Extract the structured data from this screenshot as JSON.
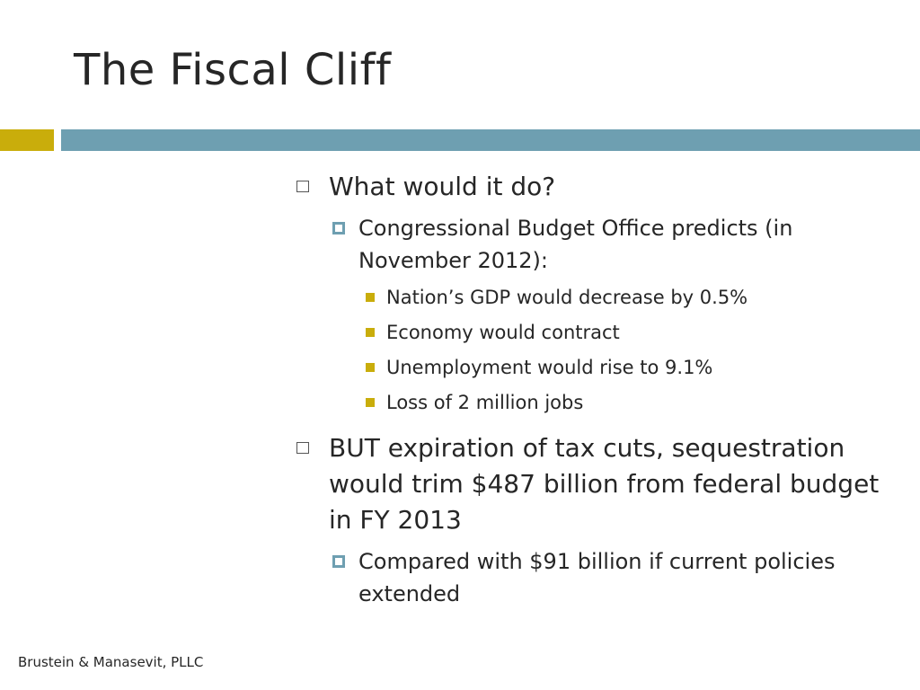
{
  "slide": {
    "title": "The Fiscal Cliff",
    "footer": "Brustein & Manasevit, PLLC",
    "bullets": [
      {
        "text": "What would it do?",
        "sub": [
          {
            "text": "Congressional Budget Office predicts (in November 2012):",
            "sub": [
              "Nation’s GDP would decrease by 0.5%",
              "Economy would contract",
              "Unemployment would rise to 9.1%",
              "Loss of 2 million jobs"
            ]
          }
        ]
      },
      {
        "text": "BUT expiration of tax cuts, sequestration would trim $487 billion from federal budget in FY 2013",
        "sub": [
          {
            "text": "Compared with $91 billion if current policies extended"
          }
        ]
      }
    ]
  },
  "colors": {
    "gold_accent": "#c9ad0b",
    "teal_accent": "#6e9fb1"
  }
}
